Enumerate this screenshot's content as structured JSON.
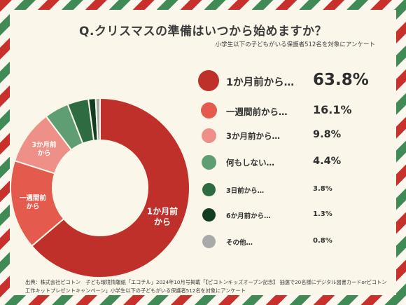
{
  "title": "Q.クリスマスの準備はいつから始めますか？",
  "subtitle": "小学生以下の子どもがいる保護者512名を対象にアンケート",
  "source": "出典：株式会社ピコトン　子ども環境情報紙「エコチル」2024年10月号掲載「【ピコトンキッズオープン記念】 抽選で20名様にデジタル図書カードorピコトン工作キットプレゼントキャンペーン」小学生以下の子どもがいる保護者512名を対象にアンケート",
  "colors": {
    "stripe_red": "#c8302b",
    "stripe_green": "#3f8a55",
    "background": "#fbf6ea"
  },
  "chart_data": {
    "type": "pie",
    "style": "donut",
    "categories": [
      "1か月前から…",
      "一週間前から…",
      "3か月前から…",
      "何もしない…",
      "3日前から…",
      "6か月前から…",
      "その他…"
    ],
    "values": [
      63.8,
      16.1,
      9.8,
      4.4,
      3.8,
      1.3,
      0.8
    ],
    "value_labels": [
      "63.8%",
      "16.1%",
      "9.8%",
      "4.4%",
      "3.8%",
      "1.3%",
      "0.8%"
    ],
    "colors": [
      "#c0302a",
      "#e45a4c",
      "#ee9088",
      "#5f9e72",
      "#2f6b40",
      "#123d22",
      "#a9a9a9"
    ],
    "slice_labels": [
      [
        "1か月前",
        "から"
      ],
      [
        "一週間前",
        "から"
      ],
      [
        "3か月前",
        "から"
      ],
      null,
      null,
      null,
      null
    ],
    "legend_placement": "right"
  }
}
